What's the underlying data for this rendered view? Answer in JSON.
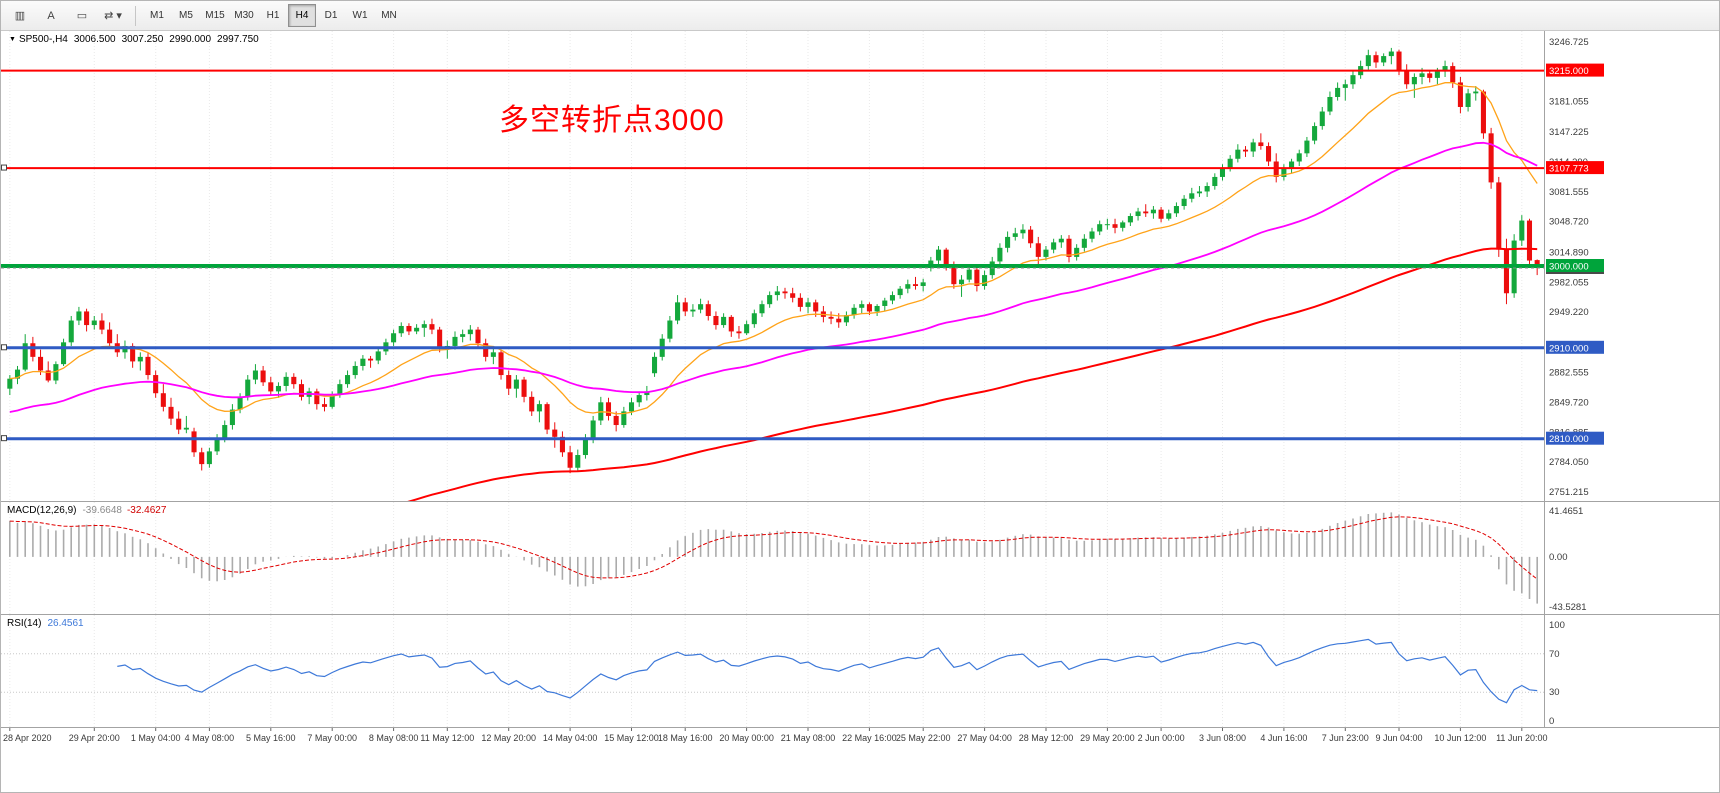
{
  "toolbar": {
    "icons": [
      {
        "name": "chart-type-icon",
        "glyph": "▥"
      },
      {
        "name": "text-tool-icon",
        "glyph": "A"
      },
      {
        "name": "shapes-tool-icon",
        "glyph": "▭"
      },
      {
        "name": "refresh-tool-icon",
        "glyph": "⇄",
        "dropdown": "▾"
      }
    ],
    "timeframes": {
      "items": [
        "M1",
        "M5",
        "M15",
        "M30",
        "H1",
        "H4",
        "D1",
        "W1",
        "MN"
      ],
      "active": "H4"
    }
  },
  "chart": {
    "collapse_icon": "▼",
    "symbol_ohlc": {
      "symbol": "SP500-,H4",
      "open": "3006.500",
      "high": "3007.250",
      "low": "2990.000",
      "close": "2997.750"
    },
    "annotation": {
      "text": "多空转折点3000",
      "color": "#FF0000"
    },
    "colors": {
      "up": "#14A83C",
      "down": "#EC0E0E",
      "ma_fast": "#FFA319",
      "ma_mid": "#FF00FF",
      "ma_slow": "#FF0000"
    },
    "hlines": [
      {
        "label": "3215.000",
        "price": 3215.0,
        "color": "#FF0000",
        "width": 2,
        "handle": false
      },
      {
        "label": "3107.773",
        "price": 3107.773,
        "color": "#FF0000",
        "width": 2,
        "handle": true
      },
      {
        "label": "3000.000",
        "price": 3000.0,
        "color": "#00A43B",
        "width": 4,
        "handle": false
      },
      {
        "label": "2910.000",
        "price": 2910.0,
        "color": "#2F5BC4",
        "width": 3,
        "handle": true
      },
      {
        "label": "2810.000",
        "price": 2810.0,
        "color": "#2F5BC4",
        "width": 3,
        "handle": true
      }
    ],
    "current_price": {
      "label": "2997.750",
      "price": 2997.75,
      "badge_color": "#4A4A4A"
    },
    "price_axis_labels": [
      "3246.725",
      "3181.055",
      "3147.225",
      "3114.390",
      "3081.555",
      "3048.720",
      "3014.890",
      "2982.055",
      "2949.220",
      "2882.555",
      "2849.720",
      "2816.885",
      "2784.050",
      "2751.215"
    ]
  },
  "macd": {
    "label": "MACD(12,26,9)",
    "value_main": "-39.6648",
    "value_signal": "-32.4627",
    "axis": [
      "41.4651",
      "0.00",
      "-43.5281"
    ],
    "histogram_color": "#ABABAB",
    "signal_color": "#E00000"
  },
  "rsi": {
    "label": "RSI(14)",
    "value": "26.4561",
    "axis": [
      "100",
      "70",
      "30",
      "0"
    ],
    "levels": [
      70,
      30
    ],
    "line_color": "#3E79D9",
    "period": 14
  },
  "time_axis": {
    "labels": [
      "28 Apr 2020",
      "29 Apr 20:00",
      "1 May 04:00",
      "4 May 08:00",
      "5 May 16:00",
      "7 May 00:00",
      "8 May 08:00",
      "11 May 12:00",
      "12 May 20:00",
      "14 May 04:00",
      "15 May 12:00",
      "18 May 16:00",
      "20 May 00:00",
      "21 May 08:00",
      "22 May 16:00",
      "25 May 22:00",
      "27 May 04:00",
      "28 May 12:00",
      "29 May 20:00",
      "2 Jun 00:00",
      "3 Jun 08:00",
      "4 Jun 16:00",
      "7 Jun 23:00",
      "9 Jun 04:00",
      "10 Jun 12:00",
      "11 Jun 20:00"
    ],
    "label_indices": [
      0,
      11,
      19,
      26,
      34,
      42,
      50,
      57,
      65,
      73,
      81,
      88,
      96,
      104,
      112,
      119,
      127,
      135,
      143,
      150,
      158,
      166,
      174,
      181,
      189,
      197
    ]
  },
  "chart_data": {
    "type": "candlestick",
    "symbol": "SP500-",
    "timeframe": "H4",
    "x_range": [
      "28 Apr 2020",
      "11 Jun 2020 20:00"
    ],
    "price_range": {
      "top": 3252,
      "bottom": 2748
    },
    "indicators": [
      "MACD(12,26,9)",
      "RSI(14)",
      "3 moving averages (fast orange, mid magenta, slow red)"
    ],
    "candles": [
      [
        2865,
        2880,
        2858,
        2876
      ],
      [
        2876,
        2890,
        2870,
        2886
      ],
      [
        2886,
        2925,
        2884,
        2915
      ],
      [
        2915,
        2922,
        2895,
        2900
      ],
      [
        2900,
        2908,
        2880,
        2885
      ],
      [
        2885,
        2895,
        2872,
        2874
      ],
      [
        2874,
        2895,
        2870,
        2892
      ],
      [
        2892,
        2920,
        2890,
        2916
      ],
      [
        2916,
        2945,
        2912,
        2940
      ],
      [
        2940,
        2955,
        2935,
        2950
      ],
      [
        2950,
        2953,
        2928,
        2935
      ],
      [
        2935,
        2945,
        2930,
        2940
      ],
      [
        2940,
        2948,
        2925,
        2930
      ],
      [
        2930,
        2938,
        2910,
        2915
      ],
      [
        2915,
        2925,
        2900,
        2905
      ],
      [
        2905,
        2918,
        2898,
        2912
      ],
      [
        2912,
        2915,
        2888,
        2895
      ],
      [
        2895,
        2905,
        2885,
        2900
      ],
      [
        2900,
        2905,
        2875,
        2880
      ],
      [
        2880,
        2885,
        2855,
        2860
      ],
      [
        2860,
        2870,
        2840,
        2845
      ],
      [
        2845,
        2855,
        2825,
        2832
      ],
      [
        2832,
        2840,
        2815,
        2820
      ],
      [
        2820,
        2835,
        2816,
        2822
      ],
      [
        2818,
        2822,
        2790,
        2795
      ],
      [
        2795,
        2800,
        2775,
        2782
      ],
      [
        2782,
        2800,
        2778,
        2796
      ],
      [
        2796,
        2815,
        2792,
        2810
      ],
      [
        2810,
        2830,
        2806,
        2825
      ],
      [
        2825,
        2848,
        2820,
        2842
      ],
      [
        2842,
        2860,
        2838,
        2856
      ],
      [
        2856,
        2880,
        2852,
        2875
      ],
      [
        2875,
        2892,
        2870,
        2885
      ],
      [
        2885,
        2890,
        2868,
        2872
      ],
      [
        2872,
        2878,
        2858,
        2862
      ],
      [
        2862,
        2872,
        2855,
        2868
      ],
      [
        2868,
        2883,
        2862,
        2878
      ],
      [
        2878,
        2882,
        2865,
        2870
      ],
      [
        2870,
        2875,
        2852,
        2856
      ],
      [
        2856,
        2866,
        2848,
        2862
      ],
      [
        2862,
        2865,
        2842,
        2848
      ],
      [
        2848,
        2855,
        2840,
        2845
      ],
      [
        2845,
        2862,
        2843,
        2858
      ],
      [
        2858,
        2875,
        2855,
        2870
      ],
      [
        2870,
        2885,
        2866,
        2880
      ],
      [
        2880,
        2895,
        2876,
        2890
      ],
      [
        2890,
        2902,
        2885,
        2898
      ],
      [
        2898,
        2901,
        2888,
        2896
      ],
      [
        2896,
        2910,
        2892,
        2906
      ],
      [
        2906,
        2920,
        2902,
        2916
      ],
      [
        2916,
        2930,
        2912,
        2926
      ],
      [
        2926,
        2938,
        2922,
        2934
      ],
      [
        2934,
        2937,
        2924,
        2928
      ],
      [
        2928,
        2936,
        2925,
        2932
      ],
      [
        2932,
        2940,
        2922,
        2936
      ],
      [
        2936,
        2942,
        2925,
        2930
      ],
      [
        2930,
        2933,
        2905,
        2910
      ],
      [
        2910,
        2918,
        2898,
        2912
      ],
      [
        2912,
        2928,
        2908,
        2922
      ],
      [
        2922,
        2930,
        2916,
        2925
      ],
      [
        2925,
        2935,
        2918,
        2930
      ],
      [
        2930,
        2933,
        2910,
        2915
      ],
      [
        2915,
        2920,
        2895,
        2900
      ],
      [
        2900,
        2912,
        2892,
        2905
      ],
      [
        2905,
        2908,
        2875,
        2880
      ],
      [
        2880,
        2885,
        2858,
        2865
      ],
      [
        2865,
        2880,
        2855,
        2875
      ],
      [
        2875,
        2878,
        2850,
        2856
      ],
      [
        2856,
        2862,
        2835,
        2840
      ],
      [
        2840,
        2852,
        2828,
        2848
      ],
      [
        2848,
        2850,
        2815,
        2820
      ],
      [
        2820,
        2828,
        2800,
        2812
      ],
      [
        2812,
        2818,
        2790,
        2795
      ],
      [
        2795,
        2802,
        2772,
        2778
      ],
      [
        2778,
        2798,
        2775,
        2792
      ],
      [
        2792,
        2815,
        2788,
        2810
      ],
      [
        2810,
        2835,
        2805,
        2830
      ],
      [
        2830,
        2856,
        2825,
        2850
      ],
      [
        2850,
        2855,
        2830,
        2835
      ],
      [
        2835,
        2840,
        2818,
        2825
      ],
      [
        2825,
        2845,
        2822,
        2840
      ],
      [
        2840,
        2855,
        2836,
        2850
      ],
      [
        2850,
        2862,
        2845,
        2858
      ],
      [
        2858,
        2868,
        2852,
        2862
      ],
      [
        2882,
        2905,
        2878,
        2900
      ],
      [
        2900,
        2925,
        2896,
        2920
      ],
      [
        2920,
        2945,
        2916,
        2940
      ],
      [
        2940,
        2968,
        2936,
        2960
      ],
      [
        2960,
        2965,
        2945,
        2950
      ],
      [
        2950,
        2958,
        2944,
        2952
      ],
      [
        2952,
        2964,
        2948,
        2958
      ],
      [
        2958,
        2962,
        2940,
        2945
      ],
      [
        2945,
        2950,
        2930,
        2935
      ],
      [
        2935,
        2948,
        2932,
        2944
      ],
      [
        2944,
        2946,
        2922,
        2928
      ],
      [
        2928,
        2934,
        2920,
        2926
      ],
      [
        2926,
        2940,
        2924,
        2936
      ],
      [
        2936,
        2952,
        2932,
        2948
      ],
      [
        2948,
        2962,
        2944,
        2958
      ],
      [
        2958,
        2972,
        2954,
        2968
      ],
      [
        2968,
        2978,
        2962,
        2972
      ],
      [
        2972,
        2976,
        2964,
        2970
      ],
      [
        2970,
        2976,
        2960,
        2965
      ],
      [
        2965,
        2970,
        2950,
        2955
      ],
      [
        2955,
        2965,
        2948,
        2960
      ],
      [
        2960,
        2963,
        2944,
        2950
      ],
      [
        2950,
        2956,
        2938,
        2944
      ],
      [
        2944,
        2950,
        2936,
        2942
      ],
      [
        2942,
        2948,
        2932,
        2938
      ],
      [
        2938,
        2950,
        2934,
        2946
      ],
      [
        2946,
        2958,
        2942,
        2954
      ],
      [
        2954,
        2962,
        2948,
        2958
      ],
      [
        2958,
        2960,
        2946,
        2950
      ],
      [
        2950,
        2958,
        2945,
        2956
      ],
      [
        2956,
        2965,
        2950,
        2962
      ],
      [
        2962,
        2972,
        2958,
        2968
      ],
      [
        2968,
        2978,
        2964,
        2975
      ],
      [
        2975,
        2985,
        2970,
        2980
      ],
      [
        2980,
        2988,
        2974,
        2978
      ],
      [
        2978,
        2986,
        2972,
        2982
      ],
      [
        2998,
        3010,
        2994,
        3006
      ],
      [
        3006,
        3022,
        3002,
        3018
      ],
      [
        3018,
        3020,
        2995,
        3000
      ],
      [
        3000,
        3005,
        2975,
        2980
      ],
      [
        2980,
        2990,
        2966,
        2985
      ],
      [
        2985,
        3000,
        2982,
        2996
      ],
      [
        2996,
        3000,
        2972,
        2978
      ],
      [
        2978,
        2995,
        2974,
        2990
      ],
      [
        2990,
        3010,
        2986,
        3005
      ],
      [
        3005,
        3025,
        3000,
        3020
      ],
      [
        3020,
        3038,
        3015,
        3032
      ],
      [
        3032,
        3042,
        3028,
        3036
      ],
      [
        3036,
        3046,
        3030,
        3040
      ],
      [
        3040,
        3044,
        3020,
        3025
      ],
      [
        3025,
        3032,
        3002,
        3010
      ],
      [
        3010,
        3022,
        3006,
        3018
      ],
      [
        3018,
        3030,
        3014,
        3026
      ],
      [
        3026,
        3034,
        3020,
        3030
      ],
      [
        3030,
        3034,
        3004,
        3010
      ],
      [
        3010,
        3024,
        3006,
        3020
      ],
      [
        3020,
        3035,
        3016,
        3030
      ],
      [
        3030,
        3042,
        3026,
        3038
      ],
      [
        3038,
        3050,
        3034,
        3046
      ],
      [
        3046,
        3052,
        3040,
        3046
      ],
      [
        3046,
        3052,
        3036,
        3042
      ],
      [
        3042,
        3050,
        3038,
        3048
      ],
      [
        3048,
        3058,
        3044,
        3055
      ],
      [
        3055,
        3064,
        3050,
        3060
      ],
      [
        3060,
        3068,
        3054,
        3058
      ],
      [
        3058,
        3066,
        3052,
        3062
      ],
      [
        3062,
        3065,
        3048,
        3052
      ],
      [
        3052,
        3062,
        3050,
        3058
      ],
      [
        3058,
        3070,
        3054,
        3066
      ],
      [
        3066,
        3078,
        3062,
        3074
      ],
      [
        3074,
        3086,
        3070,
        3080
      ],
      [
        3080,
        3088,
        3076,
        3082
      ],
      [
        3082,
        3092,
        3076,
        3088
      ],
      [
        3088,
        3102,
        3084,
        3098
      ],
      [
        3098,
        3112,
        3094,
        3108
      ],
      [
        3108,
        3122,
        3104,
        3118
      ],
      [
        3118,
        3134,
        3114,
        3128
      ],
      [
        3128,
        3132,
        3120,
        3126
      ],
      [
        3126,
        3140,
        3120,
        3136
      ],
      [
        3136,
        3146,
        3128,
        3132
      ],
      [
        3132,
        3136,
        3110,
        3115
      ],
      [
        3115,
        3124,
        3092,
        3098
      ],
      [
        3098,
        3112,
        3094,
        3108
      ],
      [
        3108,
        3118,
        3102,
        3115
      ],
      [
        3115,
        3128,
        3110,
        3124
      ],
      [
        3124,
        3142,
        3120,
        3138
      ],
      [
        3138,
        3158,
        3134,
        3154
      ],
      [
        3154,
        3175,
        3150,
        3170
      ],
      [
        3170,
        3192,
        3166,
        3186
      ],
      [
        3186,
        3202,
        3182,
        3196
      ],
      [
        3196,
        3205,
        3182,
        3200
      ],
      [
        3200,
        3215,
        3195,
        3210
      ],
      [
        3210,
        3226,
        3206,
        3220
      ],
      [
        3220,
        3238,
        3216,
        3232
      ],
      [
        3232,
        3236,
        3218,
        3224
      ],
      [
        3224,
        3234,
        3220,
        3231
      ],
      [
        3231,
        3240,
        3222,
        3236
      ],
      [
        3236,
        3238,
        3210,
        3215
      ],
      [
        3215,
        3222,
        3195,
        3200
      ],
      [
        3200,
        3212,
        3185,
        3208
      ],
      [
        3208,
        3218,
        3200,
        3212
      ],
      [
        3212,
        3215,
        3202,
        3207
      ],
      [
        3207,
        3218,
        3200,
        3214
      ],
      [
        3214,
        3226,
        3208,
        3220
      ],
      [
        3220,
        3224,
        3196,
        3202
      ],
      [
        3202,
        3208,
        3168,
        3175
      ],
      [
        3175,
        3195,
        3170,
        3190
      ],
      [
        3190,
        3198,
        3182,
        3192
      ],
      [
        3192,
        3194,
        3140,
        3146
      ],
      [
        3146,
        3152,
        3085,
        3092
      ],
      [
        3092,
        3098,
        3010,
        3018
      ],
      [
        3018,
        3030,
        2958,
        2970
      ],
      [
        2970,
        3035,
        2965,
        3028
      ],
      [
        3028,
        3056,
        3022,
        3050
      ],
      [
        3050,
        3052,
        3000,
        3006
      ],
      [
        3006.5,
        3007.25,
        2990,
        2997.75
      ]
    ]
  }
}
